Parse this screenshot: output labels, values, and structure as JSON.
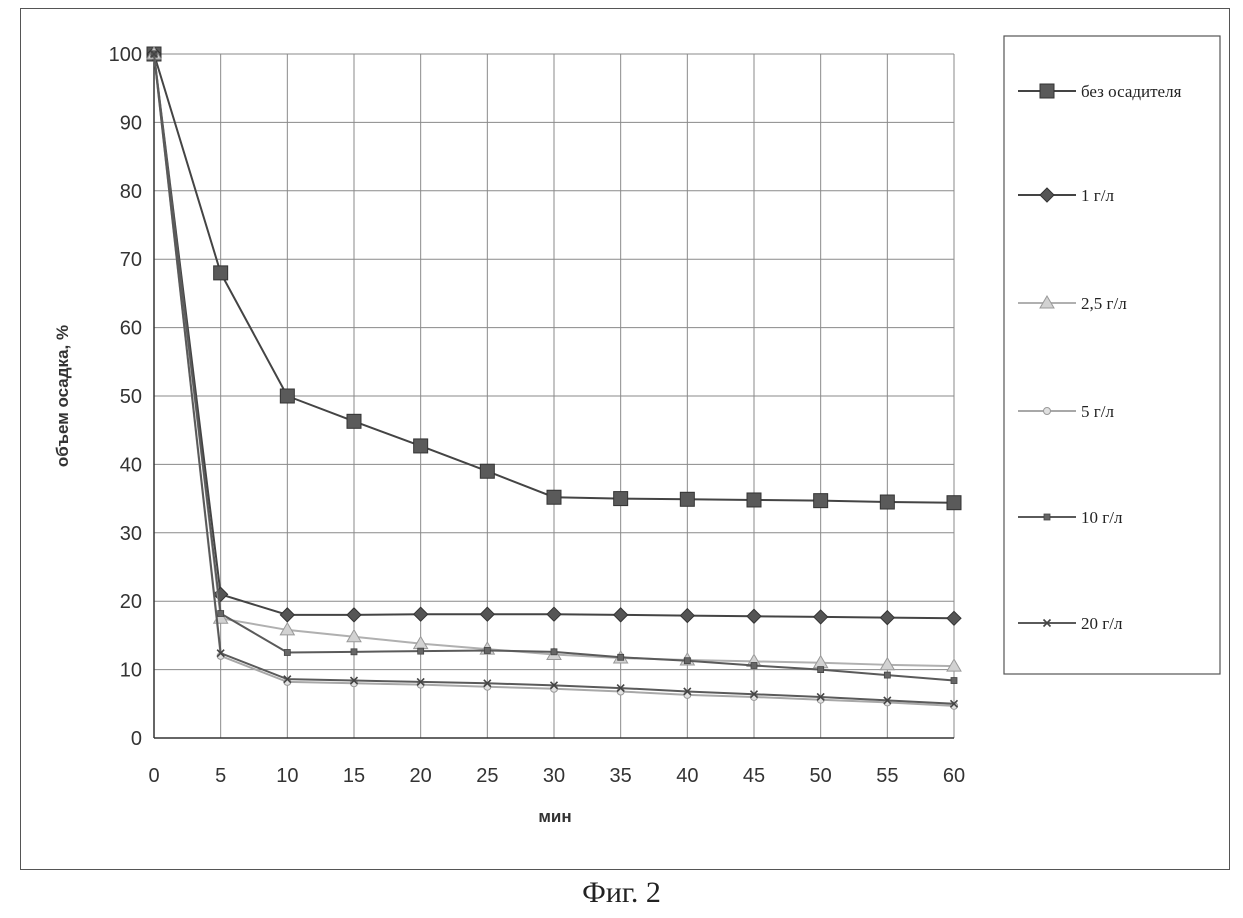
{
  "caption": "Фиг. 2",
  "chart_data": {
    "type": "line",
    "xlabel": "мин",
    "ylabel": "объем осадка, %",
    "x": [
      0,
      5,
      10,
      15,
      20,
      25,
      30,
      35,
      40,
      45,
      50,
      55,
      60
    ],
    "xlim": [
      0,
      60
    ],
    "ylim": [
      0,
      100
    ],
    "xticks": [
      0,
      5,
      10,
      15,
      20,
      25,
      30,
      35,
      40,
      45,
      50,
      55,
      60
    ],
    "yticks": [
      0,
      10,
      20,
      30,
      40,
      50,
      60,
      70,
      80,
      90,
      100
    ],
    "grid": true,
    "legend_position": "right",
    "series": [
      {
        "name": "без осадителя",
        "marker": "square",
        "color": "#444444",
        "values": [
          100,
          68,
          50,
          46.3,
          42.7,
          39,
          35.2,
          35,
          34.9,
          34.8,
          34.7,
          34.5,
          34.4
        ]
      },
      {
        "name": "1 г/л",
        "marker": "diamond",
        "color": "#444444",
        "values": [
          100,
          21,
          18,
          18,
          18.1,
          18.1,
          18.1,
          18,
          17.9,
          17.8,
          17.7,
          17.6,
          17.5
        ]
      },
      {
        "name": "2,5 г/л",
        "marker": "triangle",
        "color": "#b0b0b0",
        "values": [
          100,
          17.5,
          15.8,
          14.8,
          13.8,
          13,
          12.2,
          11.7,
          11.4,
          11.2,
          11,
          10.7,
          10.5
        ]
      },
      {
        "name": "5 г/л",
        "marker": "circle",
        "color": "#a8a8a8",
        "values": [
          100,
          12,
          8.2,
          8,
          7.8,
          7.5,
          7.2,
          6.8,
          6.3,
          6,
          5.6,
          5.2,
          4.7
        ]
      },
      {
        "name": "10 г/л",
        "marker": "small-square",
        "color": "#5a5a5a",
        "values": [
          100,
          18.2,
          12.5,
          12.6,
          12.7,
          12.8,
          12.6,
          11.8,
          11.3,
          10.6,
          10,
          9.2,
          8.4
        ]
      },
      {
        "name": "20 г/л",
        "marker": "x",
        "color": "#5a5a5a",
        "values": [
          100,
          12.4,
          8.6,
          8.4,
          8.2,
          8,
          7.7,
          7.3,
          6.8,
          6.4,
          6,
          5.5,
          5
        ]
      }
    ]
  }
}
